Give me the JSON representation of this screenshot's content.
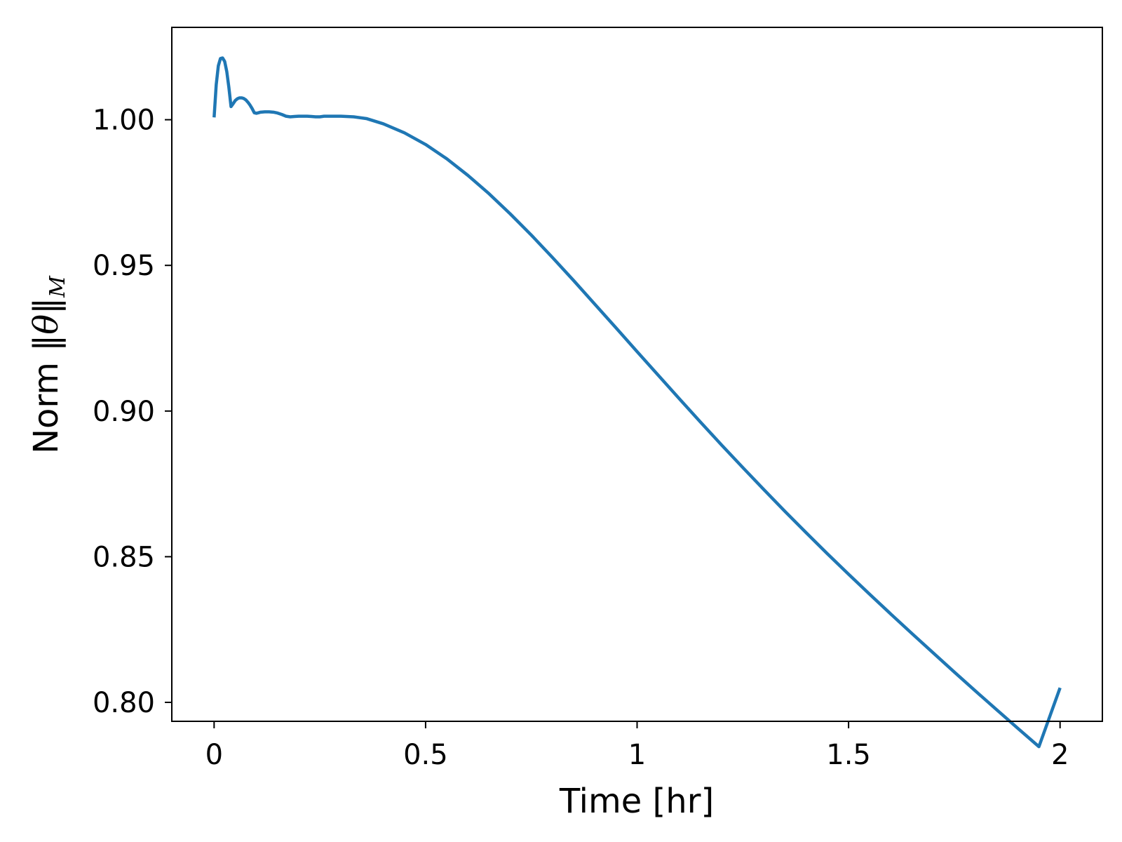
{
  "chart_data": {
    "type": "line",
    "title": "",
    "xlabel": "Time [hr]",
    "ylabel": {
      "prefix": "Norm ",
      "symbol": "θ",
      "subscript": "M"
    },
    "xlim": [
      -0.1,
      2.1
    ],
    "ylim": [
      0.7935,
      1.0317
    ],
    "xticks": [
      {
        "value": 0,
        "label": "0"
      },
      {
        "value": 0.5,
        "label": "0.5"
      },
      {
        "value": 1,
        "label": "1"
      },
      {
        "value": 1.5,
        "label": "1.5"
      },
      {
        "value": 2,
        "label": "2"
      }
    ],
    "yticks": [
      {
        "value": 0.8,
        "label": "0.80"
      },
      {
        "value": 0.85,
        "label": "0.85"
      },
      {
        "value": 0.9,
        "label": "0.90"
      },
      {
        "value": 0.95,
        "label": "0.95"
      },
      {
        "value": 1.0,
        "label": "1.00"
      }
    ],
    "grid": false,
    "series": [
      {
        "color": "#1f77b4",
        "x": [
          0,
          0.005,
          0.01,
          0.015,
          0.02,
          0.025,
          0.03,
          0.035,
          0.04,
          0.045,
          0.05,
          0.055,
          0.06,
          0.065,
          0.07,
          0.075,
          0.08,
          0.085,
          0.09,
          0.095,
          0.1,
          0.105,
          0.11,
          0.12,
          0.13,
          0.14,
          0.15,
          0.16,
          0.17,
          0.18,
          0.19,
          0.2,
          0.21,
          0.22,
          0.23,
          0.24,
          0.25,
          0.26,
          0.27,
          0.28,
          0.3,
          0.33,
          0.36,
          0.4,
          0.45,
          0.5,
          0.55,
          0.6,
          0.65,
          0.7,
          0.75,
          0.8,
          0.85,
          0.9,
          0.95,
          1.0,
          1.05,
          1.1,
          1.15,
          1.2,
          1.25,
          1.3,
          1.35,
          1.4,
          1.45,
          1.5,
          1.55,
          1.6,
          1.65,
          1.7,
          1.75,
          1.8,
          1.85,
          1.9,
          1.95,
          2.0
        ],
        "y": [
          1.0008,
          1.012,
          1.0185,
          1.021,
          1.0212,
          1.02,
          1.0165,
          1.011,
          1.0045,
          1.0055,
          1.0066,
          1.0072,
          1.0075,
          1.0075,
          1.0073,
          1.0068,
          1.006,
          1.005,
          1.0038,
          1.0024,
          1.0022,
          1.0024,
          1.0026,
          1.0027,
          1.0027,
          1.0026,
          1.0023,
          1.0018,
          1.0012,
          1.001,
          1.0011,
          1.0012,
          1.0012,
          1.0012,
          1.0011,
          1.001,
          1.001,
          1.0012,
          1.0012,
          1.0012,
          1.0012,
          1.001,
          1.0004,
          0.9986,
          0.9955,
          0.9915,
          0.9866,
          0.9809,
          0.9746,
          0.9677,
          0.9604,
          0.9527,
          0.9448,
          0.9367,
          0.9286,
          0.9204,
          0.9123,
          0.9042,
          0.8962,
          0.8883,
          0.8806,
          0.873,
          0.8655,
          0.8582,
          0.851,
          0.844,
          0.8371,
          0.8303,
          0.8236,
          0.817,
          0.8104,
          0.8039,
          0.7975,
          0.7911,
          0.7848,
          0.805
        ]
      }
    ]
  }
}
